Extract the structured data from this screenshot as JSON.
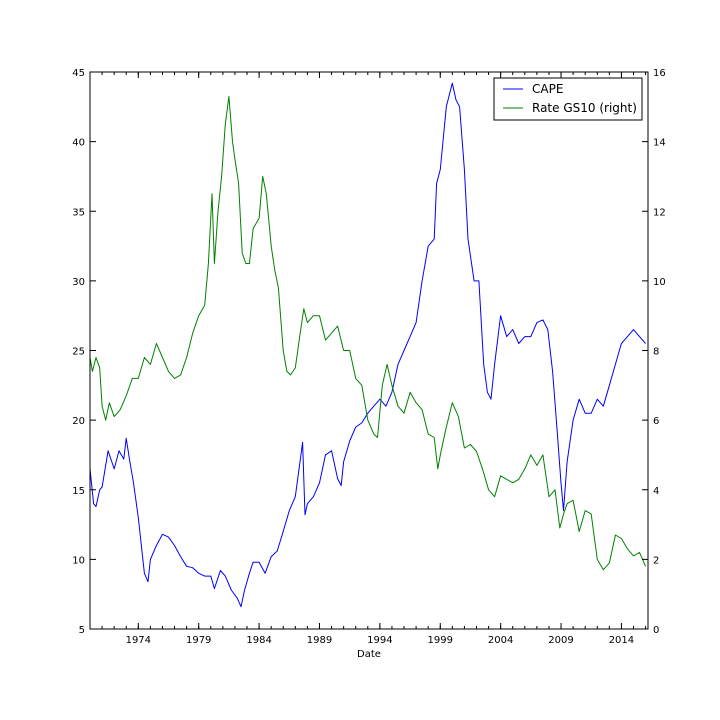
{
  "chart_data": {
    "type": "line",
    "xlabel": "Date",
    "x_ticks": [
      "1974",
      "1979",
      "1984",
      "1989",
      "1994",
      "1999",
      "2004",
      "2009",
      "2014"
    ],
    "x_range": [
      1970.0,
      2016.2
    ],
    "left_axis": {
      "ylim": [
        5,
        45
      ],
      "ticks": [
        "5",
        "10",
        "15",
        "20",
        "25",
        "30",
        "35",
        "40",
        "45"
      ]
    },
    "right_axis": {
      "ylim": [
        0,
        16
      ],
      "ticks": [
        "0",
        "2",
        "4",
        "6",
        "8",
        "10",
        "12",
        "14",
        "16"
      ]
    },
    "legend": {
      "position": "upper-right"
    },
    "grid": false,
    "series": [
      {
        "name": "CAPE",
        "axis": "left",
        "color": "#0000ff",
        "x": [
          1970.0,
          1970.3,
          1970.5,
          1970.8,
          1971.0,
          1971.5,
          1972.0,
          1972.4,
          1972.8,
          1973.0,
          1973.3,
          1973.6,
          1974.0,
          1974.5,
          1974.8,
          1975.0,
          1975.5,
          1976.0,
          1976.5,
          1977.0,
          1977.5,
          1978.0,
          1978.5,
          1979.0,
          1979.5,
          1980.0,
          1980.3,
          1980.8,
          1981.2,
          1981.7,
          1982.2,
          1982.5,
          1982.8,
          1983.2,
          1983.5,
          1984.0,
          1984.5,
          1985.0,
          1985.5,
          1986.0,
          1986.5,
          1987.0,
          1987.6,
          1987.8,
          1988.0,
          1988.5,
          1989.0,
          1989.5,
          1990.0,
          1990.5,
          1990.8,
          1991.0,
          1991.5,
          1992.0,
          1992.5,
          1993.0,
          1993.5,
          1994.0,
          1994.5,
          1995.0,
          1995.5,
          1996.0,
          1996.5,
          1997.0,
          1997.5,
          1998.0,
          1998.5,
          1998.7,
          1999.0,
          1999.5,
          2000.0,
          2000.3,
          2000.6,
          2001.0,
          2001.3,
          2001.8,
          2002.2,
          2002.6,
          2002.9,
          2003.2,
          2003.5,
          2004.0,
          2004.5,
          2005.0,
          2005.5,
          2006.0,
          2006.5,
          2007.0,
          2007.5,
          2007.9,
          2008.3,
          2008.7,
          2009.0,
          2009.2,
          2009.5,
          2010.0,
          2010.5,
          2011.0,
          2011.5,
          2012.0,
          2012.5,
          2013.0,
          2013.5,
          2014.0,
          2014.5,
          2015.0,
          2015.5,
          2016.0
        ],
        "y": [
          16.5,
          14.0,
          13.8,
          15.0,
          15.2,
          17.8,
          16.5,
          17.8,
          17.2,
          18.7,
          17.0,
          15.5,
          13.0,
          9.0,
          8.4,
          10.0,
          11.0,
          11.8,
          11.6,
          11.0,
          10.2,
          9.5,
          9.4,
          9.0,
          8.8,
          8.8,
          7.9,
          9.2,
          8.8,
          7.8,
          7.2,
          6.6,
          7.8,
          9.0,
          9.8,
          9.8,
          9.0,
          10.2,
          10.6,
          12.0,
          13.5,
          14.5,
          18.4,
          13.2,
          14.0,
          14.5,
          15.5,
          17.5,
          17.8,
          15.8,
          15.3,
          17.0,
          18.5,
          19.5,
          19.8,
          20.5,
          21.0,
          21.5,
          21.0,
          22.0,
          24.0,
          25.0,
          26.0,
          27.0,
          30.0,
          32.5,
          33.0,
          37.0,
          38.0,
          42.5,
          44.2,
          43.0,
          42.5,
          38.0,
          33.0,
          30.0,
          30.0,
          24.0,
          22.0,
          21.5,
          24.0,
          27.5,
          26.0,
          26.5,
          25.5,
          26.0,
          26.0,
          27.0,
          27.2,
          26.5,
          23.5,
          19.0,
          15.5,
          13.5,
          17.0,
          20.0,
          21.5,
          20.5,
          20.5,
          21.5,
          21.0,
          22.5,
          24.0,
          25.5,
          26.0,
          26.5,
          26.0,
          25.5
        ]
      },
      {
        "name": "Rate GS10 (right)",
        "axis": "right",
        "color": "#008000",
        "x": [
          1970.0,
          1970.2,
          1970.5,
          1970.8,
          1971.0,
          1971.3,
          1971.6,
          1972.0,
          1972.5,
          1973.0,
          1973.5,
          1974.0,
          1974.5,
          1975.0,
          1975.5,
          1976.0,
          1976.5,
          1977.0,
          1977.5,
          1978.0,
          1978.5,
          1979.0,
          1979.5,
          1979.8,
          1980.1,
          1980.3,
          1980.6,
          1980.9,
          1981.2,
          1981.5,
          1981.8,
          1982.0,
          1982.3,
          1982.6,
          1982.9,
          1983.2,
          1983.5,
          1984.0,
          1984.3,
          1984.6,
          1985.0,
          1985.3,
          1985.6,
          1986.0,
          1986.3,
          1986.6,
          1987.0,
          1987.4,
          1987.7,
          1988.0,
          1988.5,
          1989.0,
          1989.5,
          1990.0,
          1990.5,
          1991.0,
          1991.5,
          1992.0,
          1992.5,
          1993.0,
          1993.5,
          1993.8,
          1994.2,
          1994.6,
          1995.0,
          1995.5,
          1996.0,
          1996.5,
          1997.0,
          1997.5,
          1998.0,
          1998.5,
          1998.8,
          1999.0,
          1999.5,
          2000.0,
          2000.5,
          2001.0,
          2001.5,
          2002.0,
          2002.5,
          2003.0,
          2003.5,
          2004.0,
          2004.5,
          2005.0,
          2005.5,
          2006.0,
          2006.5,
          2007.0,
          2007.5,
          2008.0,
          2008.5,
          2008.9,
          2009.2,
          2009.5,
          2010.0,
          2010.5,
          2011.0,
          2011.5,
          2012.0,
          2012.5,
          2013.0,
          2013.5,
          2014.0,
          2014.5,
          2015.0,
          2015.5,
          2016.0
        ],
        "y": [
          7.8,
          7.4,
          7.8,
          7.5,
          6.4,
          6.0,
          6.5,
          6.1,
          6.3,
          6.7,
          7.2,
          7.2,
          7.8,
          7.6,
          8.2,
          7.8,
          7.4,
          7.2,
          7.3,
          7.8,
          8.5,
          9.0,
          9.3,
          10.5,
          12.5,
          10.5,
          12.0,
          13.0,
          14.5,
          15.3,
          14.0,
          13.5,
          12.8,
          10.8,
          10.5,
          10.5,
          11.5,
          11.8,
          13.0,
          12.5,
          11.0,
          10.3,
          9.8,
          8.0,
          7.4,
          7.3,
          7.5,
          8.5,
          9.2,
          8.8,
          9.0,
          9.0,
          8.3,
          8.5,
          8.7,
          8.0,
          8.0,
          7.2,
          7.0,
          6.0,
          5.6,
          5.5,
          7.0,
          7.6,
          7.0,
          6.4,
          6.2,
          6.8,
          6.5,
          6.3,
          5.6,
          5.5,
          4.6,
          5.0,
          5.8,
          6.5,
          6.1,
          5.2,
          5.3,
          5.1,
          4.6,
          4.0,
          3.8,
          4.4,
          4.3,
          4.2,
          4.3,
          4.6,
          5.0,
          4.7,
          5.0,
          3.8,
          4.0,
          2.9,
          3.3,
          3.6,
          3.7,
          2.8,
          3.4,
          3.3,
          2.0,
          1.7,
          1.9,
          2.7,
          2.6,
          2.3,
          2.1,
          2.2,
          1.8
        ]
      }
    ]
  }
}
